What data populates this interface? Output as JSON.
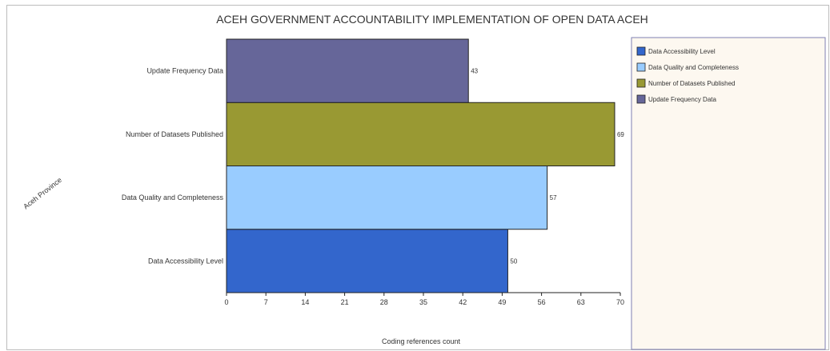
{
  "chart_data": {
    "type": "bar",
    "orientation": "horizontal",
    "title": "ACEH GOVERNMENT ACCOUNTABILITY IMPLEMENTATION OF OPEN DATA ACEH",
    "xlabel": "Coding references count",
    "ylabel": "Aceh Province",
    "categories": [
      "Data Accessibility Level",
      "Data Quality and Completeness",
      "Number of Datasets Published",
      "Update Frequency Data"
    ],
    "values": [
      50,
      57,
      69,
      43
    ],
    "value_labels": [
      "50",
      "57",
      "69",
      "43"
    ],
    "colors": [
      "#3366cc",
      "#99ccff",
      "#999933",
      "#666699"
    ],
    "xlim": [
      0,
      70
    ],
    "xticks": [
      "0",
      "7",
      "14",
      "21",
      "28",
      "35",
      "42",
      "49",
      "56",
      "63",
      "70"
    ],
    "grid": false,
    "legend_position": "right",
    "legend": [
      "Data Accessibility Level",
      "Data Quality and Completeness",
      "Number of Datasets Published",
      "Update Frequency Data"
    ]
  }
}
